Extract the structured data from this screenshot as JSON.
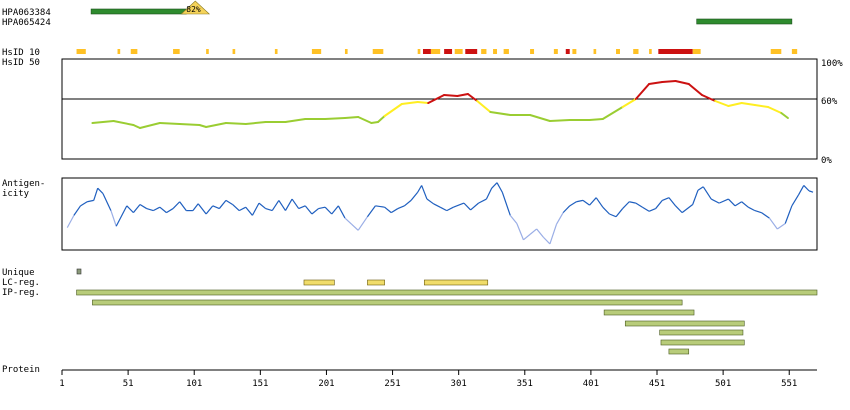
{
  "chart_data": {
    "type": "line",
    "antibodies": [
      {
        "name": "HPA063384",
        "start": 23,
        "end": 95,
        "identity_label": "82%",
        "color": "#2e8b2e"
      },
      {
        "name": "HPA065424",
        "start": 481,
        "end": 553,
        "color": "#2e8b2e"
      }
    ],
    "hsid_rows": {
      "label_10": "HsID 10",
      "label_50": "HsID 50"
    },
    "hsid_segments": [
      {
        "start": 12,
        "end": 19,
        "level": "low"
      },
      {
        "start": 43,
        "end": 45,
        "level": "low"
      },
      {
        "start": 53,
        "end": 58,
        "level": "low"
      },
      {
        "start": 85,
        "end": 90,
        "level": "low"
      },
      {
        "start": 110,
        "end": 112,
        "level": "low"
      },
      {
        "start": 130,
        "end": 132,
        "level": "low"
      },
      {
        "start": 162,
        "end": 164,
        "level": "low"
      },
      {
        "start": 190,
        "end": 197,
        "level": "low"
      },
      {
        "start": 215,
        "end": 217,
        "level": "low"
      },
      {
        "start": 236,
        "end": 244,
        "level": "low"
      },
      {
        "start": 270,
        "end": 272,
        "level": "low"
      },
      {
        "start": 274,
        "end": 280,
        "level": "high"
      },
      {
        "start": 280,
        "end": 287,
        "level": "low"
      },
      {
        "start": 290,
        "end": 296,
        "level": "high"
      },
      {
        "start": 298,
        "end": 304,
        "level": "low"
      },
      {
        "start": 306,
        "end": 315,
        "level": "high"
      },
      {
        "start": 318,
        "end": 322,
        "level": "low"
      },
      {
        "start": 327,
        "end": 330,
        "level": "low"
      },
      {
        "start": 335,
        "end": 339,
        "level": "low"
      },
      {
        "start": 355,
        "end": 358,
        "level": "low"
      },
      {
        "start": 373,
        "end": 376,
        "level": "low"
      },
      {
        "start": 382,
        "end": 385,
        "level": "high"
      },
      {
        "start": 387,
        "end": 390,
        "level": "low"
      },
      {
        "start": 403,
        "end": 405,
        "level": "low"
      },
      {
        "start": 420,
        "end": 423,
        "level": "low"
      },
      {
        "start": 433,
        "end": 437,
        "level": "low"
      },
      {
        "start": 445,
        "end": 447,
        "level": "low"
      },
      {
        "start": 452,
        "end": 478,
        "level": "high"
      },
      {
        "start": 478,
        "end": 484,
        "level": "low"
      },
      {
        "start": 537,
        "end": 545,
        "level": "low"
      },
      {
        "start": 553,
        "end": 557,
        "level": "low"
      }
    ],
    "identity_panel": {
      "y_tick_labels": [
        "100%",
        "60%",
        "0%"
      ],
      "threshold": 60,
      "ylim": [
        0,
        100
      ],
      "points": [
        [
          24,
          36
        ],
        [
          40,
          38
        ],
        [
          55,
          34
        ],
        [
          60,
          31
        ],
        [
          75,
          36
        ],
        [
          90,
          35
        ],
        [
          105,
          34
        ],
        [
          110,
          32
        ],
        [
          125,
          36
        ],
        [
          140,
          35
        ],
        [
          155,
          37
        ],
        [
          170,
          37
        ],
        [
          185,
          40
        ],
        [
          200,
          40
        ],
        [
          215,
          41
        ],
        [
          225,
          42
        ],
        [
          235,
          36
        ],
        [
          240,
          37
        ],
        [
          245,
          43
        ],
        [
          258,
          55
        ],
        [
          270,
          57
        ],
        [
          278,
          56
        ],
        [
          290,
          64
        ],
        [
          300,
          63
        ],
        [
          308,
          65
        ],
        [
          315,
          58
        ],
        [
          325,
          47
        ],
        [
          340,
          44
        ],
        [
          355,
          44
        ],
        [
          370,
          38
        ],
        [
          385,
          39
        ],
        [
          400,
          39
        ],
        [
          410,
          40
        ],
        [
          425,
          52
        ],
        [
          435,
          60
        ],
        [
          445,
          75
        ],
        [
          455,
          77
        ],
        [
          465,
          78
        ],
        [
          475,
          75
        ],
        [
          485,
          64
        ],
        [
          495,
          58
        ],
        [
          505,
          53
        ],
        [
          515,
          56
        ],
        [
          525,
          54
        ],
        [
          535,
          52
        ],
        [
          545,
          46
        ],
        [
          550,
          41
        ]
      ]
    },
    "antigenicity_panel": {
      "label": "Antigen-\nicity",
      "points": [
        [
          5,
          30
        ],
        [
          10,
          48
        ],
        [
          15,
          62
        ],
        [
          20,
          68
        ],
        [
          25,
          70
        ],
        [
          28,
          88
        ],
        [
          32,
          80
        ],
        [
          38,
          55
        ],
        [
          42,
          32
        ],
        [
          50,
          62
        ],
        [
          55,
          52
        ],
        [
          60,
          64
        ],
        [
          65,
          58
        ],
        [
          70,
          55
        ],
        [
          75,
          60
        ],
        [
          80,
          52
        ],
        [
          85,
          58
        ],
        [
          90,
          68
        ],
        [
          95,
          55
        ],
        [
          100,
          55
        ],
        [
          104,
          65
        ],
        [
          110,
          50
        ],
        [
          115,
          62
        ],
        [
          120,
          58
        ],
        [
          125,
          70
        ],
        [
          130,
          64
        ],
        [
          135,
          55
        ],
        [
          140,
          60
        ],
        [
          145,
          48
        ],
        [
          150,
          66
        ],
        [
          155,
          58
        ],
        [
          160,
          55
        ],
        [
          165,
          70
        ],
        [
          170,
          55
        ],
        [
          175,
          72
        ],
        [
          180,
          58
        ],
        [
          185,
          62
        ],
        [
          190,
          50
        ],
        [
          195,
          58
        ],
        [
          200,
          60
        ],
        [
          205,
          50
        ],
        [
          210,
          62
        ],
        [
          215,
          44
        ],
        [
          220,
          35
        ],
        [
          225,
          26
        ],
        [
          232,
          46
        ],
        [
          238,
          62
        ],
        [
          245,
          60
        ],
        [
          250,
          52
        ],
        [
          255,
          58
        ],
        [
          260,
          62
        ],
        [
          265,
          70
        ],
        [
          270,
          82
        ],
        [
          273,
          92
        ],
        [
          277,
          72
        ],
        [
          282,
          65
        ],
        [
          287,
          60
        ],
        [
          292,
          55
        ],
        [
          297,
          60
        ],
        [
          305,
          66
        ],
        [
          310,
          56
        ],
        [
          316,
          66
        ],
        [
          322,
          72
        ],
        [
          326,
          88
        ],
        [
          330,
          96
        ],
        [
          334,
          82
        ],
        [
          340,
          48
        ],
        [
          345,
          36
        ],
        [
          350,
          12
        ],
        [
          355,
          20
        ],
        [
          360,
          28
        ],
        [
          365,
          16
        ],
        [
          370,
          6
        ],
        [
          375,
          35
        ],
        [
          380,
          52
        ],
        [
          385,
          62
        ],
        [
          390,
          68
        ],
        [
          395,
          70
        ],
        [
          400,
          63
        ],
        [
          405,
          74
        ],
        [
          410,
          60
        ],
        [
          415,
          50
        ],
        [
          420,
          46
        ],
        [
          425,
          58
        ],
        [
          430,
          68
        ],
        [
          435,
          66
        ],
        [
          440,
          60
        ],
        [
          445,
          54
        ],
        [
          450,
          58
        ],
        [
          455,
          70
        ],
        [
          460,
          74
        ],
        [
          465,
          62
        ],
        [
          470,
          52
        ],
        [
          478,
          64
        ],
        [
          482,
          85
        ],
        [
          486,
          90
        ],
        [
          492,
          72
        ],
        [
          498,
          66
        ],
        [
          505,
          72
        ],
        [
          510,
          62
        ],
        [
          515,
          68
        ],
        [
          520,
          60
        ],
        [
          525,
          55
        ],
        [
          530,
          52
        ],
        [
          536,
          44
        ],
        [
          542,
          28
        ],
        [
          548,
          36
        ],
        [
          553,
          62
        ],
        [
          558,
          78
        ],
        [
          562,
          92
        ],
        [
          566,
          84
        ],
        [
          569,
          82
        ]
      ]
    },
    "regions": {
      "labels": [
        "Unique",
        "LC-reg.",
        "IP-reg."
      ],
      "unique": [
        {
          "start": 12,
          "end": 15
        }
      ],
      "lc": [
        {
          "start": 184,
          "end": 207
        },
        {
          "start": 232,
          "end": 245
        },
        {
          "start": 275,
          "end": 323
        }
      ],
      "ip": [
        {
          "start": 12,
          "end": 572
        },
        {
          "start": 24,
          "end": 470
        },
        {
          "start": 411,
          "end": 479
        },
        {
          "start": 427,
          "end": 517
        },
        {
          "start": 453,
          "end": 516
        },
        {
          "start": 454,
          "end": 517
        },
        {
          "start": 460,
          "end": 475
        }
      ]
    },
    "protein_axis": {
      "label": "Protein",
      "xlim": [
        1,
        572
      ],
      "ticks": [
        1,
        51,
        101,
        151,
        201,
        251,
        301,
        351,
        401,
        451,
        501,
        551
      ]
    },
    "colors": {
      "antibody": "#2e8b2e",
      "hsid_low": "#ffc125",
      "hsid_high": "#cc1111",
      "identity_low": "#9acd32",
      "identity_mid": "#ffee22",
      "identity_high": "#cc1111",
      "antigenicity_dark": "#1f5fbf",
      "antigenicity_light": "#9aaee6",
      "region_fill": "#b8cc7a",
      "lc_fill": "#f0dc6a",
      "unique_fill": "#8a9a7a",
      "badge_fill": "#f5d35a"
    }
  }
}
